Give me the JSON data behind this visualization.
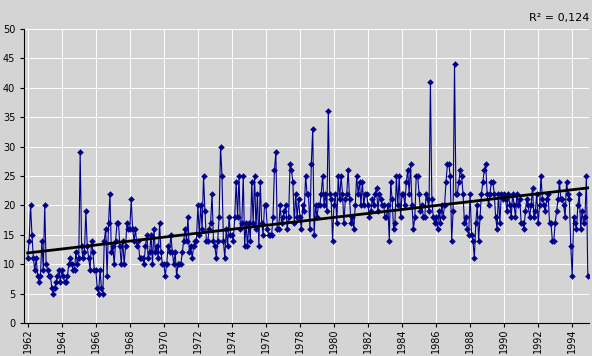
{
  "r2_text": "R² = 0,124",
  "ylim": [
    0,
    50
  ],
  "yticks": [
    0,
    5,
    10,
    15,
    20,
    25,
    30,
    35,
    40,
    45,
    50
  ],
  "start_year": 1962,
  "end_year": 1994,
  "background_color": "#d4d4d4",
  "plot_bg_color": "#d4d4d4",
  "line_color": "#00008B",
  "marker_color": "#00008B",
  "trend_color": "#000000",
  "marker_style": "D",
  "marker_size": 3,
  "line_width": 0.8,
  "trend_linewidth": 2.0,
  "ap_data": [
    11,
    14,
    20,
    15,
    11,
    9,
    11,
    8,
    7,
    8,
    14,
    9,
    20,
    10,
    9,
    8,
    8,
    6,
    5,
    6,
    7,
    8,
    9,
    7,
    9,
    8,
    7,
    7,
    8,
    10,
    11,
    10,
    9,
    9,
    12,
    10,
    11,
    29,
    13,
    11,
    12,
    19,
    13,
    11,
    9,
    14,
    12,
    9,
    9,
    6,
    5,
    9,
    6,
    5,
    14,
    16,
    8,
    17,
    22,
    12,
    13,
    10,
    14,
    17,
    17,
    13,
    10,
    14,
    10,
    13,
    17,
    16,
    16,
    21,
    16,
    14,
    16,
    13,
    14,
    11,
    11,
    11,
    10,
    13,
    15,
    11,
    12,
    15,
    10,
    16,
    12,
    13,
    11,
    17,
    12,
    10,
    10,
    8,
    10,
    13,
    12,
    15,
    12,
    10,
    12,
    8,
    10,
    10,
    10,
    12,
    14,
    16,
    14,
    18,
    12,
    13,
    11,
    13,
    14,
    14,
    20,
    15,
    20,
    16,
    25,
    19,
    14,
    14,
    16,
    17,
    22,
    14,
    13,
    11,
    14,
    18,
    30,
    25,
    14,
    11,
    16,
    13,
    18,
    15,
    15,
    14,
    18,
    24,
    18,
    25,
    16,
    17,
    25,
    13,
    17,
    13,
    17,
    14,
    24,
    17,
    25,
    16,
    22,
    13,
    24,
    17,
    15,
    20,
    20,
    16,
    15,
    15,
    15,
    18,
    26,
    29,
    16,
    16,
    20,
    17,
    18,
    19,
    20,
    16,
    18,
    27,
    26,
    24,
    17,
    22,
    18,
    21,
    18,
    16,
    20,
    19,
    25,
    22,
    22,
    16,
    27,
    33,
    15,
    20,
    18,
    20,
    20,
    22,
    25,
    20,
    22,
    19,
    36,
    22,
    21,
    14,
    20,
    22,
    17,
    25,
    21,
    25,
    22,
    17,
    21,
    22,
    26,
    21,
    17,
    18,
    16,
    20,
    25,
    22,
    24,
    20,
    24,
    20,
    22,
    22,
    20,
    18,
    19,
    21,
    20,
    22,
    23,
    19,
    22,
    21,
    20,
    20,
    18,
    18,
    20,
    14,
    24,
    21,
    16,
    17,
    25,
    20,
    25,
    18,
    22,
    22,
    20,
    24,
    26,
    22,
    27,
    20,
    16,
    18,
    25,
    25,
    22,
    19,
    20,
    18,
    18,
    22,
    21,
    19,
    41,
    21,
    18,
    17,
    18,
    16,
    19,
    17,
    20,
    18,
    20,
    24,
    27,
    27,
    25,
    14,
    19,
    44,
    22,
    22,
    24,
    26,
    25,
    22,
    17,
    18,
    16,
    15,
    22,
    15,
    14,
    11,
    17,
    20,
    14,
    18,
    22,
    24,
    26,
    27,
    22,
    20,
    22,
    24,
    24,
    22,
    18,
    16,
    22,
    17,
    22,
    21,
    22,
    21,
    19,
    22,
    20,
    18,
    22,
    20,
    18,
    22,
    20,
    21,
    17,
    17,
    16,
    19,
    21,
    20,
    18,
    20,
    23,
    18,
    19,
    22,
    17,
    20,
    25,
    21,
    20,
    19,
    21,
    22,
    17,
    17,
    14,
    14,
    17,
    19,
    21,
    24,
    21,
    21,
    20,
    18,
    24,
    22,
    21,
    13,
    8,
    18,
    17,
    16,
    20,
    22,
    16,
    19,
    17,
    18,
    25,
    8
  ]
}
